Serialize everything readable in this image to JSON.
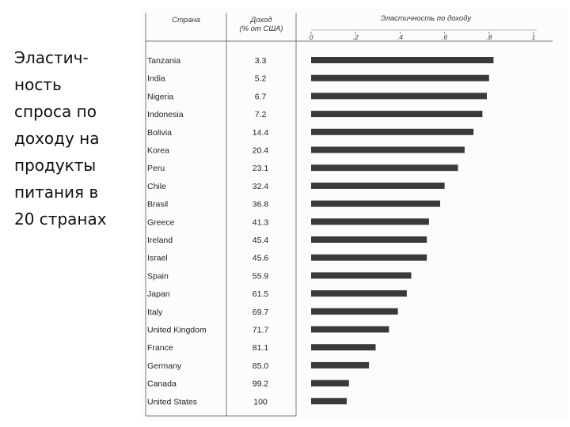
{
  "slide": {
    "title": "Эластич-\nность\nспроса по\nдоходу на\nпродукты\nпитания в\n20 странах"
  },
  "colors": {
    "bar": "#3a3a3a",
    "text": "#222222",
    "rule": "#777777"
  },
  "chart_data": {
    "type": "bar",
    "orientation": "horizontal",
    "headers": {
      "country": "Страна",
      "income": "Доход\n(% от США)",
      "elasticity": "Эластичность по доходу"
    },
    "x_ticks": [
      "0",
      ".2",
      ".4",
      ".6",
      ".8",
      "1"
    ],
    "xlim": [
      0,
      1
    ],
    "grid": false,
    "categories": [
      "Tanzania",
      "India",
      "Nigeria",
      "Indonesia",
      "Bolivia",
      "Korea",
      "Peru",
      "Chile",
      "Brasil",
      "Greece",
      "Ireland",
      "Israel",
      "Spain",
      "Japan",
      "Italy",
      "United Kingdom",
      "France",
      "Germany",
      "Canada",
      "United States"
    ],
    "income": [
      "3.3",
      "5.2",
      "6.7",
      "7.2",
      "14.4",
      "20.4",
      "23.1",
      "32.4",
      "36.8",
      "41.3",
      "45.4",
      "45.6",
      "55.9",
      "61.5",
      "69.7",
      "71.7",
      "81.1",
      "85.0",
      "99.2",
      "100"
    ],
    "series": [
      {
        "values": [
          0.82,
          0.8,
          0.79,
          0.77,
          0.73,
          0.69,
          0.66,
          0.6,
          0.58,
          0.53,
          0.52,
          0.52,
          0.45,
          0.43,
          0.39,
          0.35,
          0.29,
          0.26,
          0.17,
          0.16
        ]
      }
    ]
  }
}
